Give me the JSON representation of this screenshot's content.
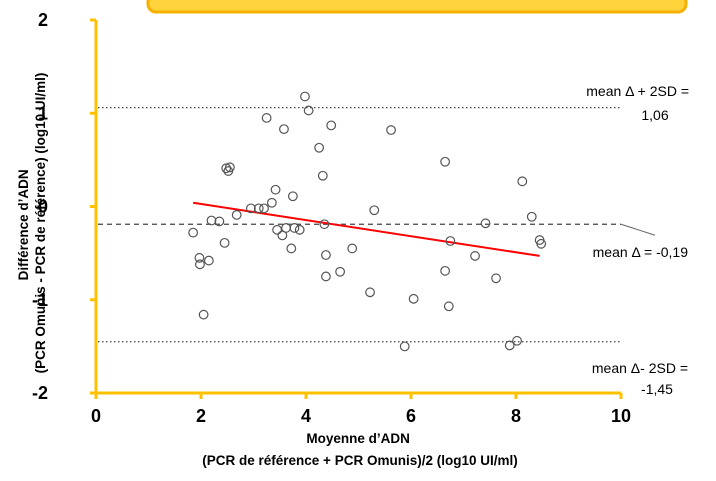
{
  "chart_data": {
    "type": "scatter",
    "title": "",
    "xlabel_lines": [
      "Moyenne d’ADN",
      "(PCR de référence + PCR Omunis)/2  (log10 UI/ml)"
    ],
    "ylabel_lines": [
      "Différence d’ADN",
      "(PCR Omunis  - PCR de référence)  (log10 UI/ml)"
    ],
    "xlim": [
      0,
      10
    ],
    "ylim": [
      -2,
      2
    ],
    "x_ticks": [
      "0",
      "2",
      "4",
      "6",
      "8",
      "10"
    ],
    "y_ticks": [
      "-2",
      "-1",
      "0",
      "1",
      "2"
    ],
    "grid": false,
    "colors": {
      "axis": "#FFC000",
      "regression": "#FF0000",
      "points": "#555555",
      "reference_lines": "#444444"
    },
    "points": [
      {
        "x": 1.85,
        "y": -0.28
      },
      {
        "x": 1.97,
        "y": -0.55
      },
      {
        "x": 1.98,
        "y": -0.62
      },
      {
        "x": 2.05,
        "y": -1.16
      },
      {
        "x": 2.15,
        "y": -0.58
      },
      {
        "x": 2.2,
        "y": -0.15
      },
      {
        "x": 2.35,
        "y": -0.16
      },
      {
        "x": 2.45,
        "y": -0.39
      },
      {
        "x": 2.48,
        "y": 0.41
      },
      {
        "x": 2.52,
        "y": 0.38
      },
      {
        "x": 2.55,
        "y": 0.42
      },
      {
        "x": 2.68,
        "y": -0.09
      },
      {
        "x": 2.95,
        "y": -0.02
      },
      {
        "x": 3.1,
        "y": -0.02
      },
      {
        "x": 3.2,
        "y": -0.02
      },
      {
        "x": 3.25,
        "y": 0.95
      },
      {
        "x": 3.35,
        "y": 0.04
      },
      {
        "x": 3.42,
        "y": 0.18
      },
      {
        "x": 3.45,
        "y": -0.25
      },
      {
        "x": 3.55,
        "y": -0.31
      },
      {
        "x": 3.58,
        "y": 0.83
      },
      {
        "x": 3.62,
        "y": -0.23
      },
      {
        "x": 3.72,
        "y": -0.45
      },
      {
        "x": 3.75,
        "y": 0.11
      },
      {
        "x": 3.78,
        "y": -0.23
      },
      {
        "x": 3.88,
        "y": -0.25
      },
      {
        "x": 3.98,
        "y": 1.18
      },
      {
        "x": 4.05,
        "y": 1.03
      },
      {
        "x": 4.25,
        "y": 0.63
      },
      {
        "x": 4.32,
        "y": 0.33
      },
      {
        "x": 4.35,
        "y": -0.19
      },
      {
        "x": 4.38,
        "y": -0.52
      },
      {
        "x": 4.38,
        "y": -0.75
      },
      {
        "x": 4.48,
        "y": 0.87
      },
      {
        "x": 4.65,
        "y": -0.7
      },
      {
        "x": 4.88,
        "y": -0.45
      },
      {
        "x": 5.22,
        "y": -0.92
      },
      {
        "x": 5.3,
        "y": -0.04
      },
      {
        "x": 5.62,
        "y": 0.82
      },
      {
        "x": 5.88,
        "y": -1.5
      },
      {
        "x": 6.05,
        "y": -0.99
      },
      {
        "x": 6.65,
        "y": 0.48
      },
      {
        "x": 6.65,
        "y": -0.69
      },
      {
        "x": 6.72,
        "y": -1.07
      },
      {
        "x": 6.75,
        "y": -0.37
      },
      {
        "x": 7.22,
        "y": -0.53
      },
      {
        "x": 7.42,
        "y": -0.18
      },
      {
        "x": 7.62,
        "y": -0.77
      },
      {
        "x": 7.88,
        "y": -1.49
      },
      {
        "x": 8.02,
        "y": -1.44
      },
      {
        "x": 8.12,
        "y": 0.27
      },
      {
        "x": 8.3,
        "y": -0.11
      },
      {
        "x": 8.45,
        "y": -0.36
      },
      {
        "x": 8.48,
        "y": -0.4
      }
    ],
    "regression_line": {
      "x": [
        1.85,
        8.45
      ],
      "y": [
        0.04,
        -0.53
      ]
    },
    "reference_lines": [
      {
        "y": 1.06,
        "style": "dotted",
        "label_lines": [
          "mean Δ + 2SD =",
          "1,06"
        ]
      },
      {
        "y": -0.19,
        "style": "dashed",
        "label_lines": [
          "mean Δ = -0,19"
        ]
      },
      {
        "y": -1.45,
        "style": "dotted",
        "label_lines": [
          "mean Δ- 2SD =",
          "-1,45"
        ]
      }
    ]
  }
}
